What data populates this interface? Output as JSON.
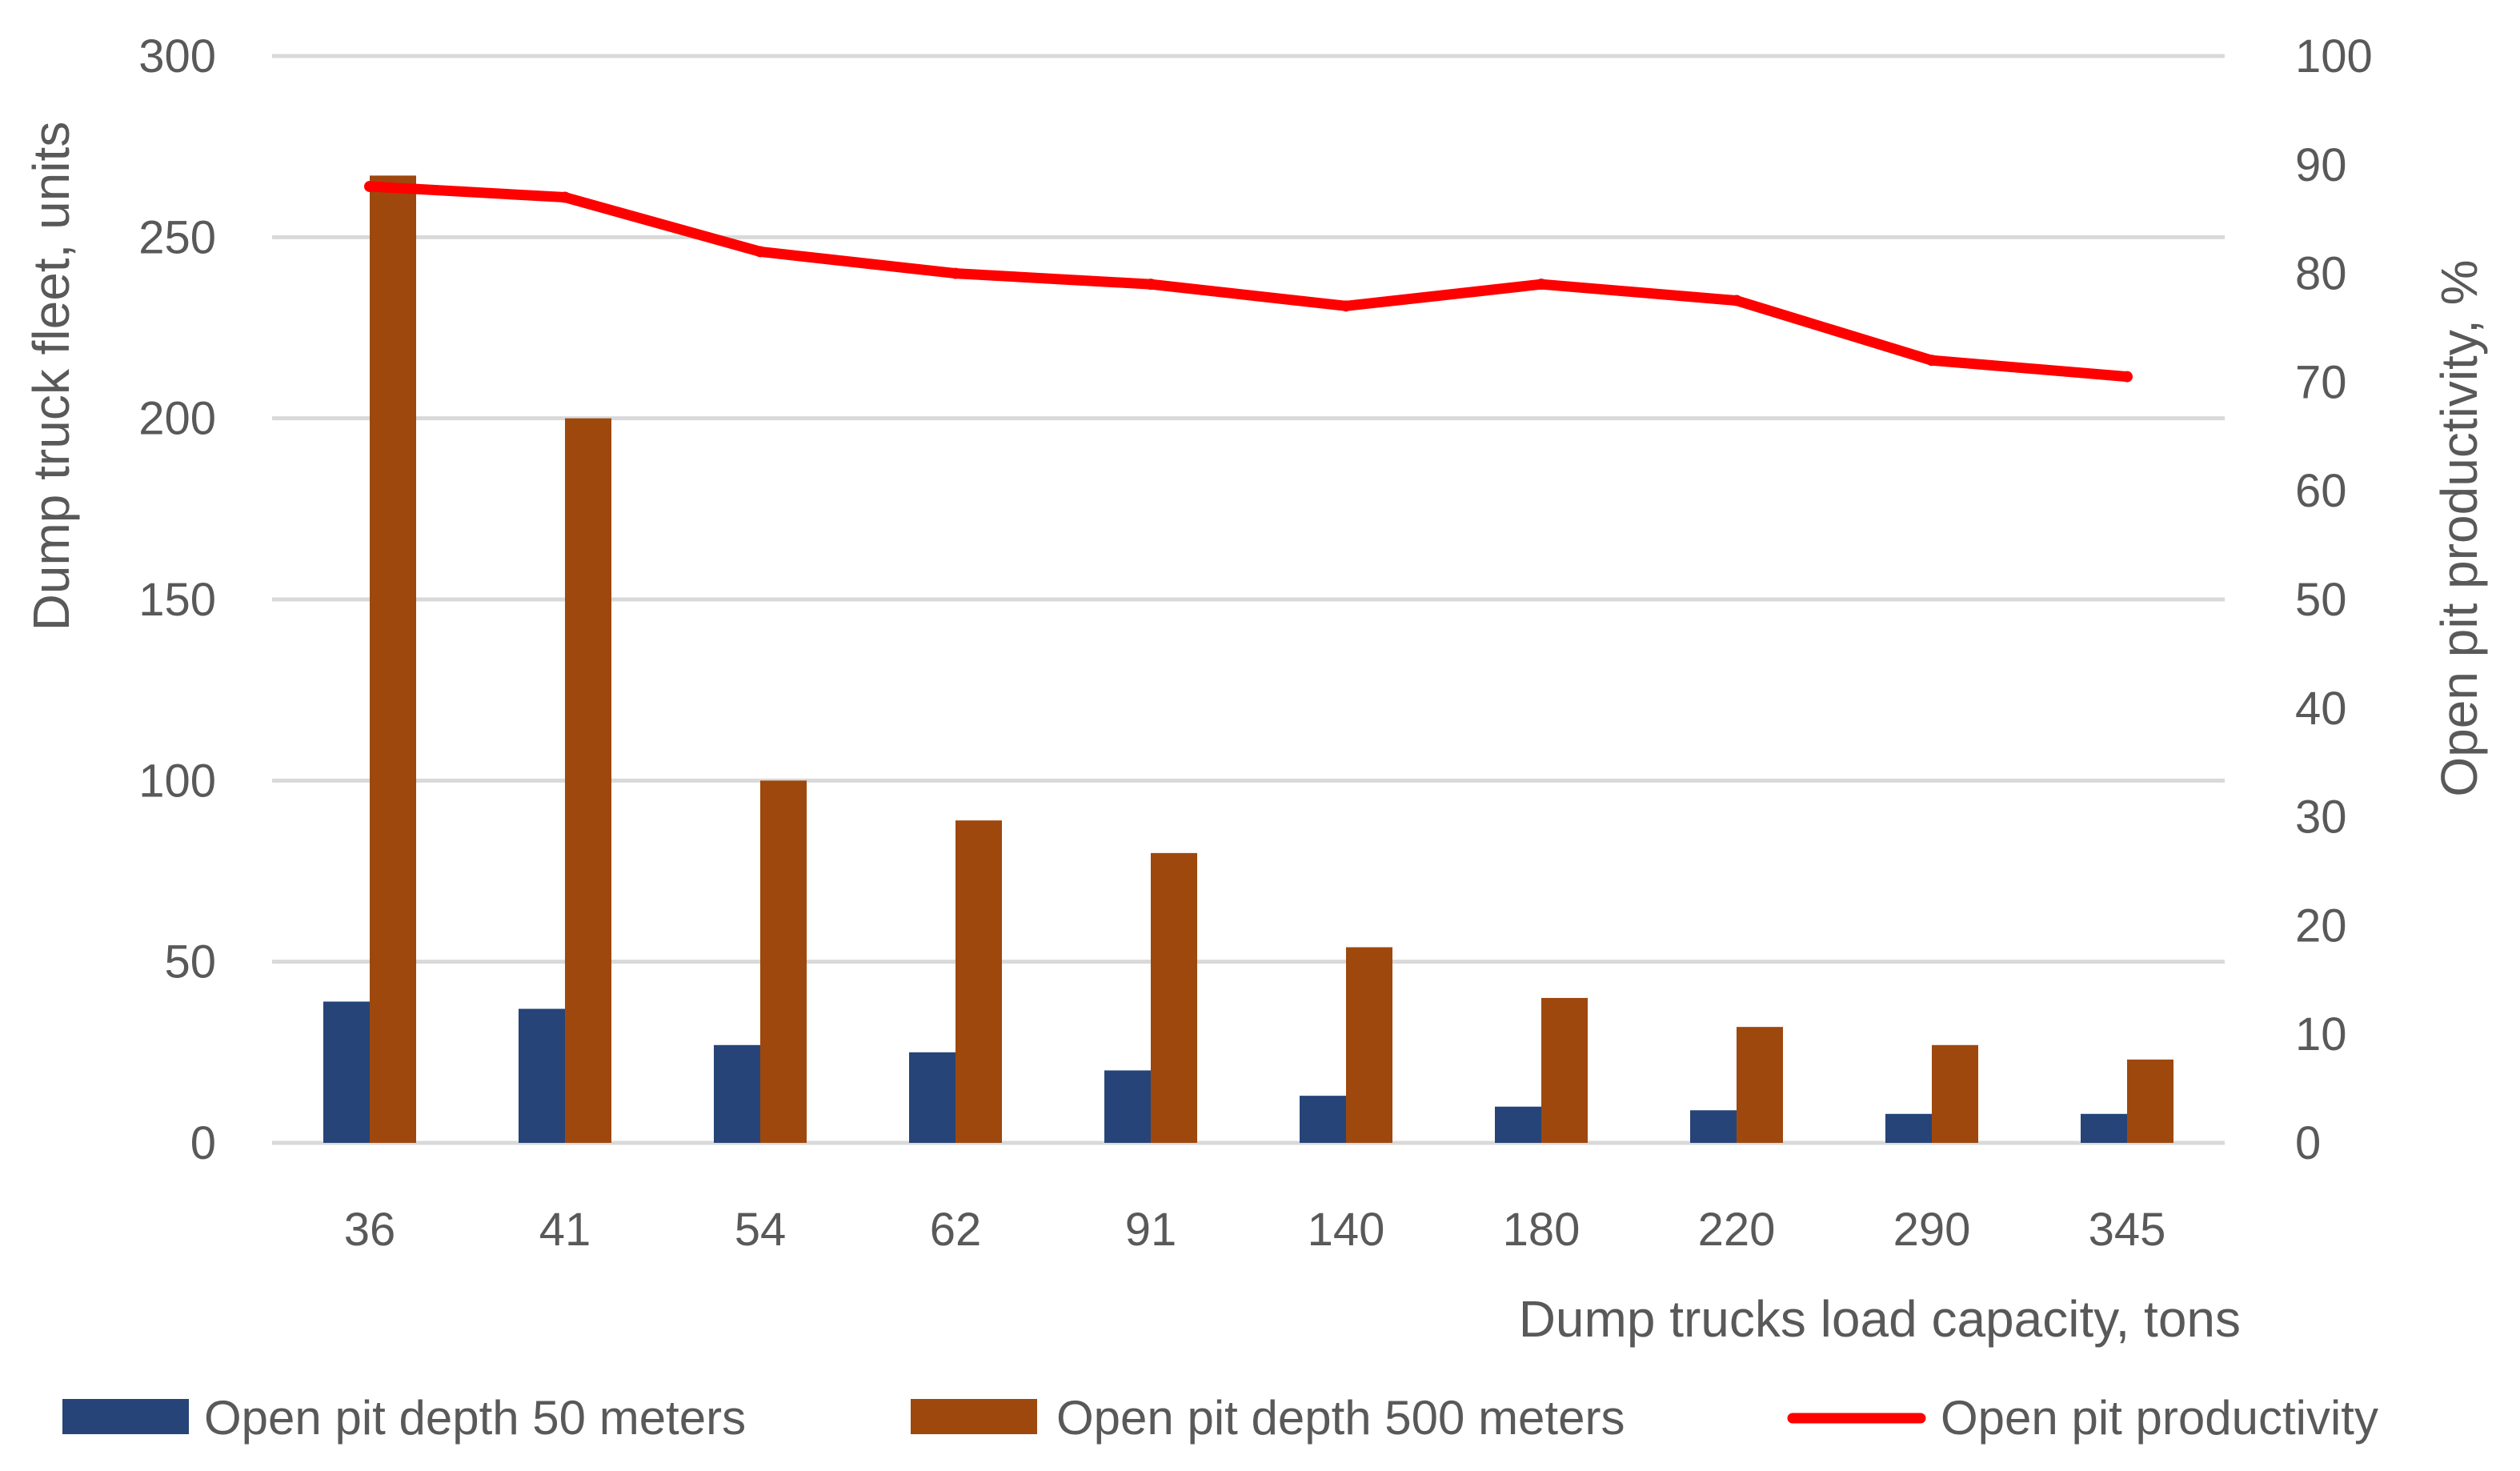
{
  "chart_data": {
    "type": "bar",
    "categories": [
      "36",
      "41",
      "54",
      "62",
      "91",
      "140",
      "180",
      "220",
      "290",
      "345"
    ],
    "series": [
      {
        "name": "Open pit depth 50 meters",
        "type": "bar",
        "axis": "left",
        "color": "#264478",
        "values": [
          39,
          37,
          27,
          25,
          20,
          13,
          10,
          9,
          8,
          8
        ]
      },
      {
        "name": "Open pit depth 500 meters",
        "type": "bar",
        "axis": "left",
        "color": "#9E480E",
        "values": [
          267,
          200,
          100,
          89,
          80,
          54,
          40,
          32,
          27,
          23
        ]
      },
      {
        "name": "Open pit productivity",
        "type": "line",
        "axis": "right",
        "color": "#FF0000",
        "values": [
          88,
          87,
          82,
          80,
          79,
          77,
          79,
          77.5,
          72,
          70.5
        ]
      }
    ],
    "xlabel": "Dump trucks load capacity, tons",
    "ylabel": "Dump truck fleet, units",
    "y2label": "Open pit productivity, %",
    "ylim": [
      0,
      300
    ],
    "y2lim": [
      0,
      100
    ],
    "yticks": [
      0,
      50,
      100,
      150,
      200,
      250,
      300
    ],
    "y2ticks": [
      0,
      10,
      20,
      30,
      40,
      50,
      60,
      70,
      80,
      90,
      100
    ],
    "grid": true,
    "legend_position": "bottom",
    "colors": {
      "grid": "#D9D9D9",
      "text": "#595959"
    }
  }
}
